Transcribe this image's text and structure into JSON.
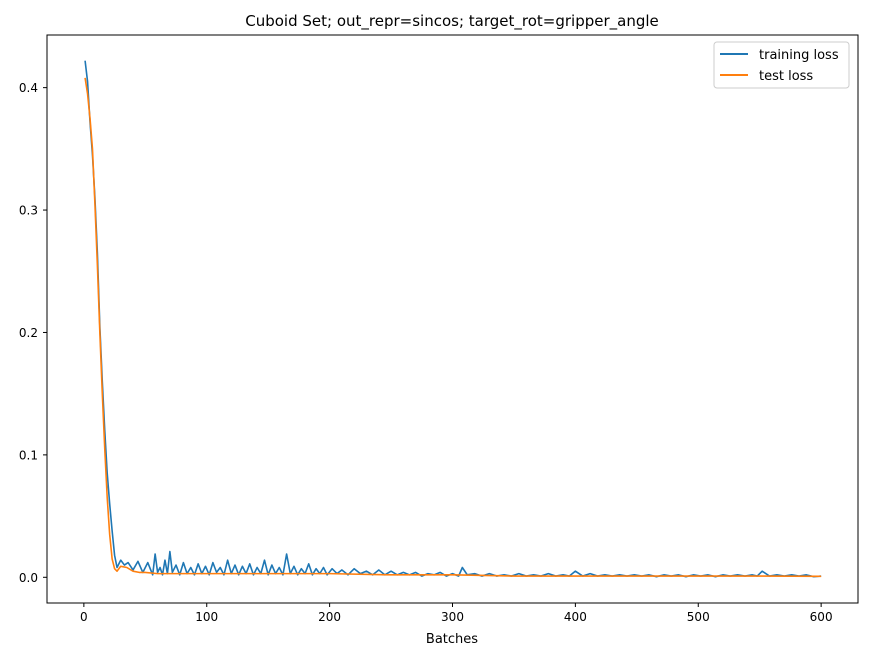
{
  "chart_data": {
    "type": "line",
    "title": "Cuboid Set; out_repr=sincos; target_rot=gripper_angle",
    "xlabel": "Batches",
    "ylabel": "",
    "xlim": [
      -30,
      630
    ],
    "ylim": [
      -0.021,
      0.443
    ],
    "xticks": [
      0,
      100,
      200,
      300,
      400,
      500,
      600
    ],
    "yticks": [
      0.0,
      0.1,
      0.2,
      0.3,
      0.4
    ],
    "xtick_labels": [
      "0",
      "100",
      "200",
      "300",
      "400",
      "500",
      "600"
    ],
    "ytick_labels": [
      "0.0",
      "0.1",
      "0.2",
      "0.3",
      "0.4"
    ],
    "grid": false,
    "legend_position": "top-right",
    "series": [
      {
        "name": "training loss",
        "color": "#1f77b4",
        "x": [
          1,
          3,
          5,
          7,
          9,
          11,
          13,
          15,
          17,
          19,
          21,
          23,
          25,
          27,
          30,
          33,
          36,
          40,
          44,
          48,
          52,
          56,
          58,
          60,
          62,
          64,
          66,
          68,
          70,
          72,
          75,
          78,
          81,
          84,
          87,
          90,
          93,
          96,
          99,
          102,
          105,
          108,
          111,
          114,
          117,
          120,
          123,
          126,
          129,
          132,
          135,
          138,
          141,
          144,
          147,
          150,
          153,
          156,
          159,
          162,
          165,
          168,
          171,
          174,
          177,
          180,
          183,
          186,
          189,
          192,
          195,
          198,
          202,
          206,
          210,
          215,
          220,
          225,
          230,
          235,
          240,
          245,
          250,
          255,
          260,
          265,
          270,
          275,
          280,
          285,
          290,
          295,
          300,
          305,
          308,
          312,
          318,
          324,
          330,
          336,
          342,
          348,
          354,
          360,
          366,
          372,
          378,
          384,
          390,
          395,
          400,
          406,
          412,
          418,
          424,
          430,
          436,
          442,
          448,
          454,
          460,
          466,
          472,
          478,
          484,
          490,
          496,
          502,
          508,
          514,
          520,
          526,
          532,
          538,
          544,
          548,
          552,
          558,
          564,
          570,
          576,
          582,
          588,
          594,
          600
        ],
        "values": [
          0.422,
          0.405,
          0.372,
          0.345,
          0.31,
          0.265,
          0.205,
          0.16,
          0.12,
          0.085,
          0.06,
          0.038,
          0.018,
          0.008,
          0.014,
          0.01,
          0.012,
          0.006,
          0.013,
          0.004,
          0.012,
          0.002,
          0.019,
          0.004,
          0.008,
          0.002,
          0.014,
          0.003,
          0.021,
          0.004,
          0.01,
          0.002,
          0.012,
          0.003,
          0.008,
          0.002,
          0.011,
          0.003,
          0.009,
          0.002,
          0.012,
          0.004,
          0.008,
          0.002,
          0.014,
          0.003,
          0.01,
          0.002,
          0.009,
          0.003,
          0.011,
          0.002,
          0.008,
          0.003,
          0.014,
          0.002,
          0.01,
          0.003,
          0.008,
          0.002,
          0.019,
          0.003,
          0.009,
          0.002,
          0.007,
          0.003,
          0.011,
          0.002,
          0.007,
          0.003,
          0.008,
          0.002,
          0.007,
          0.003,
          0.006,
          0.002,
          0.007,
          0.003,
          0.005,
          0.002,
          0.006,
          0.002,
          0.005,
          0.002,
          0.004,
          0.002,
          0.004,
          0.001,
          0.003,
          0.002,
          0.004,
          0.001,
          0.003,
          0.001,
          0.008,
          0.002,
          0.003,
          0.001,
          0.003,
          0.001,
          0.002,
          0.001,
          0.003,
          0.001,
          0.002,
          0.001,
          0.003,
          0.001,
          0.002,
          0.001,
          0.005,
          0.001,
          0.003,
          0.001,
          0.002,
          0.001,
          0.002,
          0.001,
          0.002,
          0.001,
          0.002,
          0.0005,
          0.002,
          0.001,
          0.002,
          0.0005,
          0.002,
          0.001,
          0.002,
          0.0005,
          0.002,
          0.001,
          0.002,
          0.001,
          0.002,
          0.001,
          0.005,
          0.001,
          0.002,
          0.001,
          0.002,
          0.001,
          0.002,
          0.0005,
          0.001
        ]
      },
      {
        "name": "test loss",
        "color": "#ff7f0e",
        "x": [
          1,
          3,
          5,
          7,
          9,
          11,
          13,
          15,
          17,
          19,
          21,
          23,
          25,
          27,
          30,
          35,
          40,
          45,
          50,
          60,
          80,
          100,
          150,
          200,
          250,
          300,
          350,
          400,
          450,
          500,
          550,
          600
        ],
        "values": [
          0.408,
          0.395,
          0.375,
          0.35,
          0.305,
          0.255,
          0.2,
          0.15,
          0.105,
          0.065,
          0.035,
          0.015,
          0.007,
          0.005,
          0.009,
          0.008,
          0.005,
          0.004,
          0.004,
          0.003,
          0.003,
          0.003,
          0.003,
          0.003,
          0.002,
          0.002,
          0.001,
          0.001,
          0.001,
          0.001,
          0.001,
          0.0008
        ]
      }
    ]
  }
}
